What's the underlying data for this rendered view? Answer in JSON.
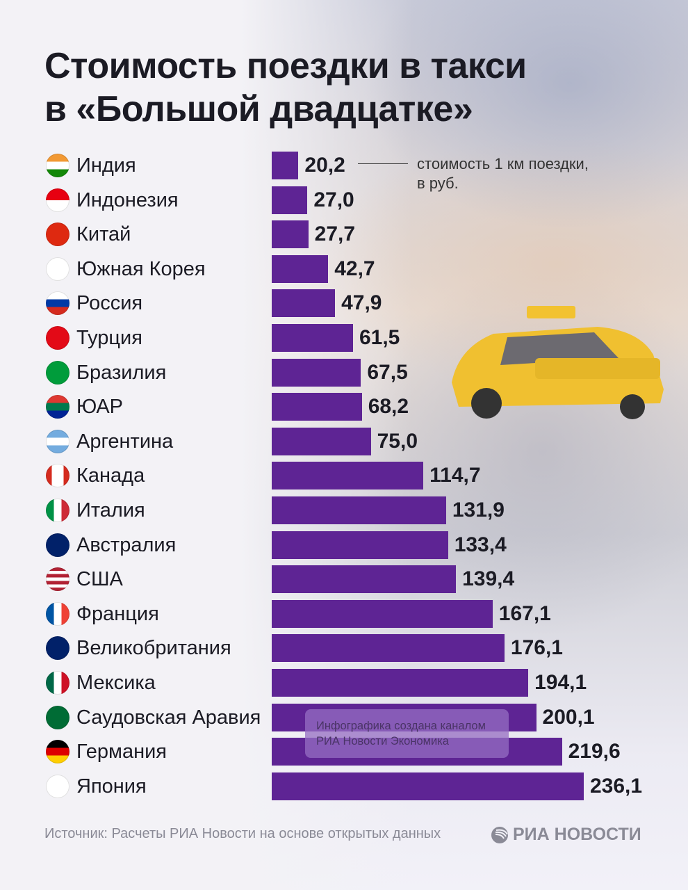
{
  "title_line1": "Стоимость поездки в такси",
  "title_line2": "в «Большой двадцатке»",
  "annotation": {
    "line1": "стоимость 1 км поездки,",
    "line2": "в руб."
  },
  "watermark": {
    "line1": "Инфографика создана каналом",
    "line2": "РИА Новости Экономика"
  },
  "source": "Источник: Расчеты РИА Новости на основе открытых данных",
  "logo_text": "РИА НОВОСТИ",
  "colors": {
    "bar": "#5e2494",
    "text": "#1b1b24"
  },
  "chart_data": {
    "type": "bar",
    "orientation": "horizontal",
    "unit": "стоимость 1 км поездки, в руб.",
    "categories": [
      "Индия",
      "Индонезия",
      "Китай",
      "Южная Корея",
      "Россия",
      "Турция",
      "Бразилия",
      "ЮАР",
      "Аргентина",
      "Канада",
      "Италия",
      "Австралия",
      "США",
      "Франция",
      "Великобритания",
      "Мексика",
      "Саудовская Аравия",
      "Германия",
      "Япония"
    ],
    "values": [
      20.2,
      27.0,
      27.7,
      42.7,
      47.9,
      61.5,
      67.5,
      68.2,
      75.0,
      114.7,
      131.9,
      133.4,
      139.4,
      167.1,
      176.1,
      194.1,
      200.1,
      219.6,
      236.1
    ],
    "labels": [
      "20,2",
      "27,0",
      "27,7",
      "42,7",
      "47,9",
      "61,5",
      "67,5",
      "68,2",
      "75,0",
      "114,7",
      "131,9",
      "133,4",
      "139,4",
      "167,1",
      "176,1",
      "194,1",
      "200,1",
      "219,6",
      "236,1"
    ],
    "xlim": [
      0,
      236.1
    ],
    "grid": false
  },
  "flags": [
    {
      "dir": "h",
      "c": [
        "#f29933",
        "#ffffff",
        "#138808"
      ]
    },
    {
      "dir": "h",
      "c": [
        "#e70011",
        "#ffffff"
      ]
    },
    {
      "dir": "h",
      "c": [
        "#de2910"
      ]
    },
    {
      "dir": "h",
      "c": [
        "#ffffff"
      ]
    },
    {
      "dir": "h",
      "c": [
        "#ffffff",
        "#0039a6",
        "#d52b1e"
      ]
    },
    {
      "dir": "h",
      "c": [
        "#e30a17"
      ]
    },
    {
      "dir": "h",
      "c": [
        "#009c3b"
      ]
    },
    {
      "dir": "h",
      "c": [
        "#de3831",
        "#007a4d",
        "#002395"
      ]
    },
    {
      "dir": "h",
      "c": [
        "#74acdf",
        "#ffffff",
        "#74acdf"
      ]
    },
    {
      "dir": "v",
      "c": [
        "#d52b1e",
        "#ffffff",
        "#ffffff",
        "#d52b1e"
      ]
    },
    {
      "dir": "v",
      "c": [
        "#009246",
        "#ffffff",
        "#ce2b37"
      ]
    },
    {
      "dir": "h",
      "c": [
        "#012169"
      ]
    },
    {
      "dir": "h",
      "c": [
        "#b22234",
        "#ffffff",
        "#b22234",
        "#ffffff",
        "#b22234",
        "#ffffff",
        "#b22234"
      ]
    },
    {
      "dir": "v",
      "c": [
        "#0055a4",
        "#ffffff",
        "#ef4135"
      ]
    },
    {
      "dir": "h",
      "c": [
        "#012169"
      ]
    },
    {
      "dir": "v",
      "c": [
        "#006847",
        "#ffffff",
        "#ce1126"
      ]
    },
    {
      "dir": "h",
      "c": [
        "#006c35"
      ]
    },
    {
      "dir": "h",
      "c": [
        "#000000",
        "#dd0000",
        "#ffce00"
      ]
    },
    {
      "dir": "h",
      "c": [
        "#ffffff"
      ]
    }
  ]
}
